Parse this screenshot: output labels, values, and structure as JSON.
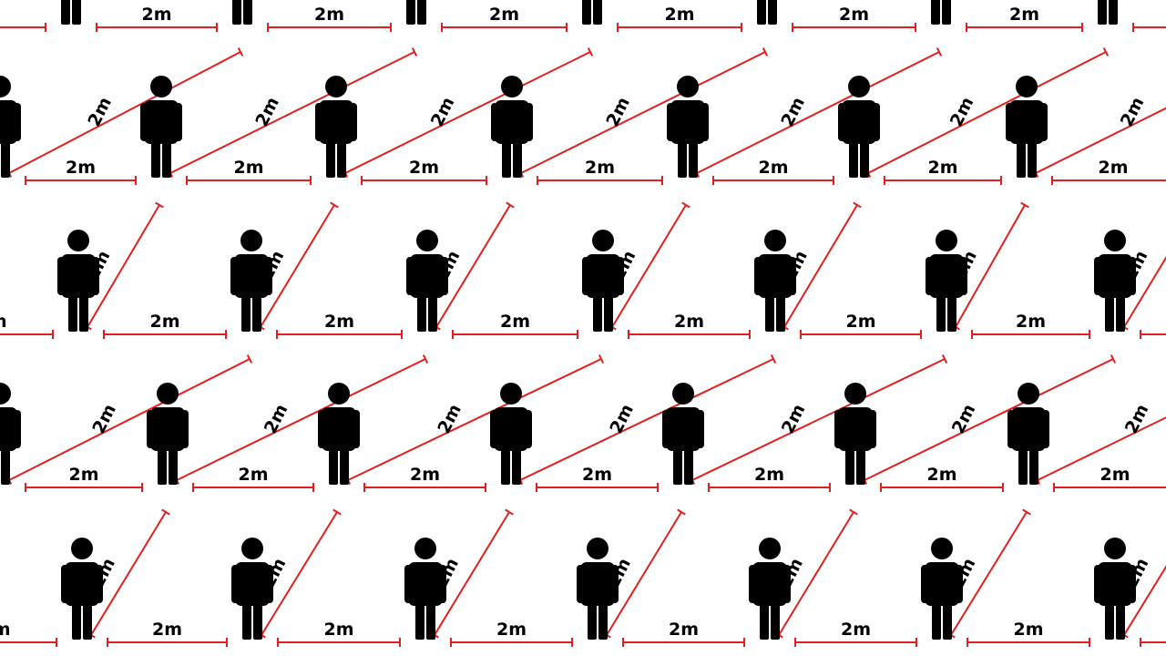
{
  "distance_label": "2m",
  "colors": {
    "background": "#ffffff",
    "figure": "#000000",
    "measure_line": "#e0201f",
    "label": "#000000"
  },
  "figure_icon": "person-standing-icon",
  "pattern": {
    "rows": 5,
    "figures_per_row": 7,
    "horizontal_measure_lines_per_row": 7,
    "diagonal_measure_lines_per_row": 7
  }
}
